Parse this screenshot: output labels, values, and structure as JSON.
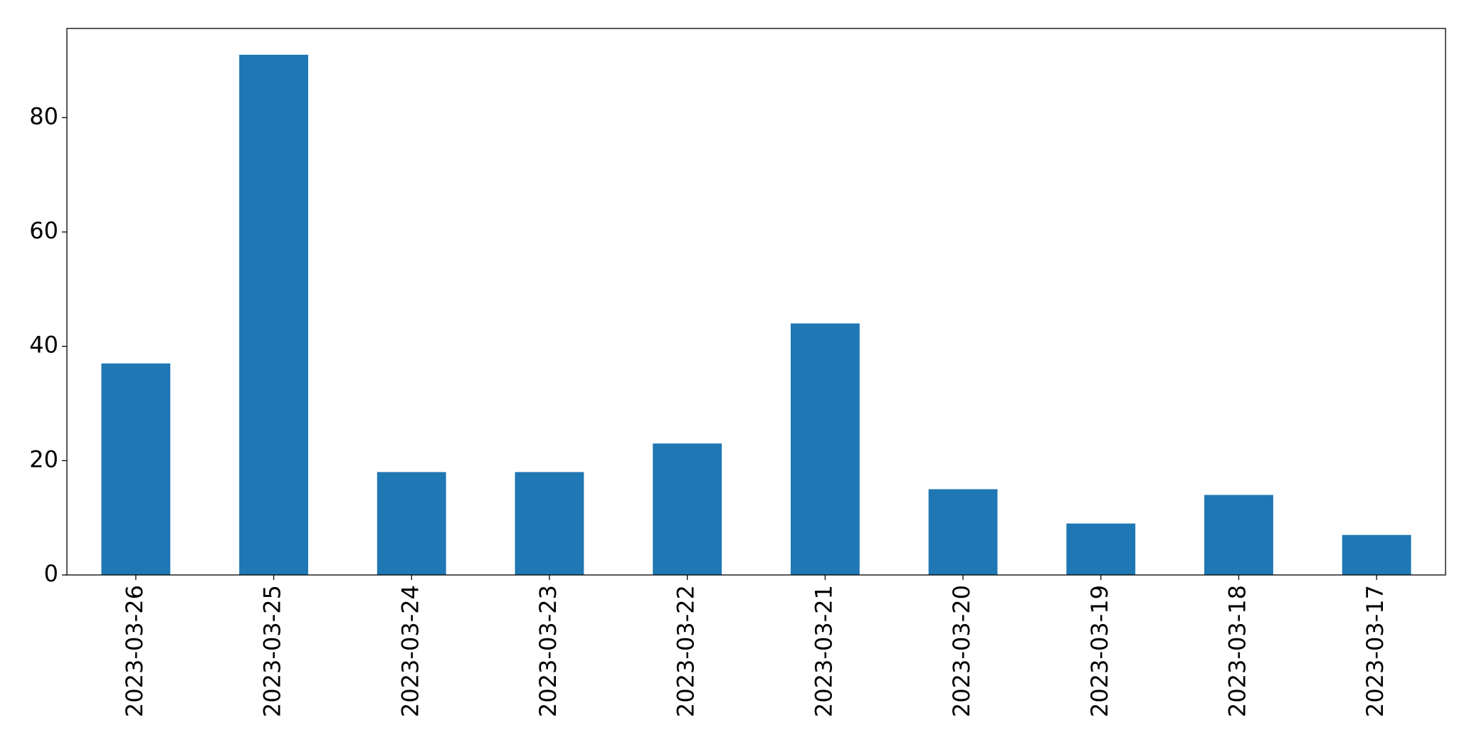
{
  "chart_data": {
    "type": "bar",
    "categories": [
      "2023-03-26",
      "2023-03-25",
      "2023-03-24",
      "2023-03-23",
      "2023-03-22",
      "2023-03-21",
      "2023-03-20",
      "2023-03-19",
      "2023-03-18",
      "2023-03-17"
    ],
    "values": [
      37,
      91,
      18,
      18,
      23,
      44,
      15,
      9,
      14,
      7
    ],
    "color": "#1f77b4",
    "ylim": [
      0,
      95.6
    ],
    "yticks": [
      0,
      20,
      40,
      60,
      80
    ],
    "grid": false
  }
}
